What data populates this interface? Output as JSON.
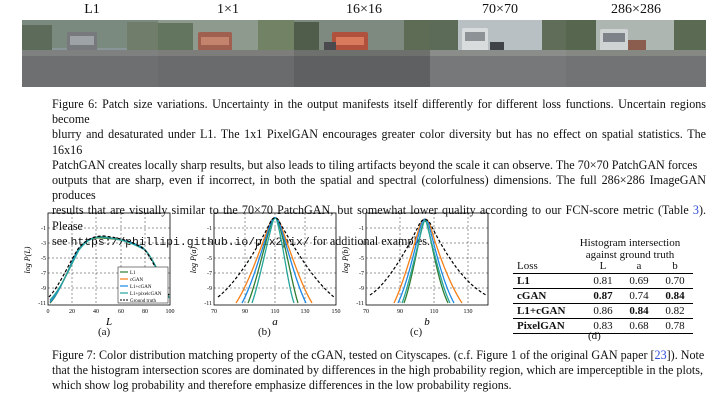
{
  "figure6": {
    "strip_labels": [
      "L1",
      "1×1",
      "16×16",
      "70×70",
      "286×286"
    ],
    "caption_lines": [
      "Figure 6: Patch size variations. Uncertainty in the output manifests itself differently for different loss functions. Uncertain regions become",
      "blurry and desaturated under L1. The 1x1 PixelGAN encourages greater color diversity but has no effect on spatial statistics. The 16x16",
      "PatchGAN creates locally sharp results, but also leads to tiling artifacts beyond the scale it can observe. The 70×70 PatchGAN forces",
      "outputs that are sharp, even if incorrect, in both the spatial and spectral (colorfulness) dimensions. The full 286×286 ImageGAN produces",
      "results that are visually similar to the 70×70 PatchGAN, but somewhat lower quality according to our FCN-score metric (Table "
    ],
    "table_ref": "3",
    "caption_tail": "). Please",
    "see_text": "see",
    "url": "https://phillipi.github.io/pix2pix/",
    "for_text": "for additional examples."
  },
  "figure7": {
    "plot_a": {
      "ylabel": "log P(L)",
      "xlabel": "L",
      "yticks": [
        "-1",
        "-3",
        "-5",
        "-7",
        "-9",
        "-11"
      ],
      "xticks": [
        "0",
        "20",
        "40",
        "60",
        "80",
        "100"
      ],
      "legend": [
        "L1",
        "cGAN",
        "L1+cGAN",
        "L1+pixelcGAN",
        "Ground truth"
      ],
      "panel": "(a)"
    },
    "plot_b": {
      "ylabel": "log P(a)",
      "xlabel": "a",
      "yticks": [
        "-1",
        "-3",
        "-5",
        "-7",
        "-9",
        "-11"
      ],
      "xticks": [
        "70",
        "90",
        "110",
        "130",
        "150"
      ],
      "panel": "(b)"
    },
    "plot_c": {
      "ylabel": "log P(b)",
      "xlabel": "b",
      "yticks": [
        "-1",
        "-3",
        "-5",
        "-7",
        "-9",
        "-11"
      ],
      "xticks": [
        "70",
        "90",
        "110",
        "130"
      ],
      "panel": "(c)"
    },
    "table": {
      "header_line1": "Histogram intersection",
      "header_line2": "against ground truth",
      "columns": [
        "Loss",
        "L",
        "a",
        "b"
      ],
      "rows": [
        {
          "loss": "L1",
          "L": "0.81",
          "a": "0.69",
          "b": "0.70"
        },
        {
          "loss": "cGAN",
          "L": "0.87",
          "a": "0.74",
          "b": "0.84"
        },
        {
          "loss": "L1+cGAN",
          "L": "0.86",
          "a": "0.84",
          "b": "0.82"
        },
        {
          "loss": "PixelGAN",
          "L": "0.83",
          "a": "0.68",
          "b": "0.78"
        }
      ],
      "panel": "(d)"
    },
    "caption_lines": [
      "Figure 7: Color distribution matching property of the cGAN, tested on Cityscapes. (c.f. Figure 1 of the original GAN paper [",
      "that the histogram intersection scores are dominated by differences in the high probability region, which are imperceptible in the plots,",
      "which show log probability and therefore emphasize differences in the low probability regions."
    ],
    "gan_ref": "23",
    "caption_line1_tail": "]). Note"
  },
  "colors": {
    "L1": "#2e7d32",
    "cGAN": "#f57f17",
    "L1_cGAN": "#1e88e5",
    "pixelcGAN": "#26a69a",
    "ground_truth": "#000000",
    "link": "#2e4fd8"
  }
}
